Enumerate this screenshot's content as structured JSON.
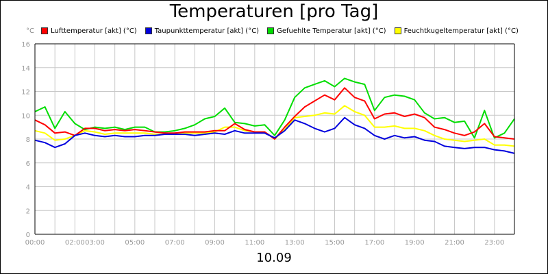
{
  "chart_data": {
    "type": "line",
    "title": "Temperaturen [pro Tag]",
    "date_label": "10.09",
    "ylabel": "°C",
    "xlabel": "",
    "ylim": [
      0,
      16
    ],
    "xlim": [
      0,
      24
    ],
    "y_ticks": [
      "0",
      "2",
      "4",
      "6",
      "8",
      "10",
      "12",
      "14",
      "16"
    ],
    "x_ticks": [
      {
        "h": 0,
        "label": "00:00"
      },
      {
        "h": 2,
        "label": "02:00"
      },
      {
        "h": 3,
        "label": "03:00"
      },
      {
        "h": 5,
        "label": "05:00"
      },
      {
        "h": 7,
        "label": "07:00"
      },
      {
        "h": 9,
        "label": "09:00"
      },
      {
        "h": 11,
        "label": "11:00"
      },
      {
        "h": 13,
        "label": "13:00"
      },
      {
        "h": 15,
        "label": "15:00"
      },
      {
        "h": 17,
        "label": "17:00"
      },
      {
        "h": 19,
        "label": "19:00"
      },
      {
        "h": 21,
        "label": "21:00"
      },
      {
        "h": 23,
        "label": "23:00"
      }
    ],
    "grid": true,
    "legend_position": "top",
    "series": [
      {
        "name": "Lufttemperatur [akt] (°C)",
        "color": "#ff0000",
        "x": [
          0,
          0.5,
          1,
          1.5,
          2,
          2.5,
          3,
          3.5,
          4,
          4.5,
          5,
          5.5,
          6,
          6.5,
          7,
          7.5,
          8,
          8.5,
          9,
          9.5,
          10,
          10.5,
          11,
          11.5,
          12,
          12.5,
          13,
          13.5,
          14,
          14.5,
          15,
          15.5,
          16,
          16.5,
          17,
          17.5,
          18,
          18.5,
          19,
          19.5,
          20,
          20.5,
          21,
          21.5,
          22,
          22.5,
          23,
          23.5,
          24
        ],
        "values": [
          9.6,
          9.2,
          8.5,
          8.6,
          8.3,
          8.9,
          8.9,
          8.7,
          8.8,
          8.7,
          8.8,
          8.7,
          8.6,
          8.5,
          8.5,
          8.6,
          8.6,
          8.6,
          8.7,
          8.7,
          9.3,
          8.8,
          8.6,
          8.6,
          8.0,
          9.0,
          9.9,
          10.7,
          11.2,
          11.7,
          11.3,
          12.3,
          11.5,
          11.2,
          9.7,
          10.1,
          10.2,
          9.9,
          10.1,
          9.8,
          9.0,
          8.8,
          8.5,
          8.3,
          8.6,
          9.3,
          8.2,
          8.1,
          8.0
        ]
      },
      {
        "name": "Taupunkttemperatur [akt] (°C)",
        "color": "#0000dd",
        "x": [
          0,
          0.5,
          1,
          1.5,
          2,
          2.5,
          3,
          3.5,
          4,
          4.5,
          5,
          5.5,
          6,
          6.5,
          7,
          7.5,
          8,
          8.5,
          9,
          9.5,
          10,
          10.5,
          11,
          11.5,
          12,
          12.5,
          13,
          13.5,
          14,
          14.5,
          15,
          15.5,
          16,
          16.5,
          17,
          17.5,
          18,
          18.5,
          19,
          19.5,
          20,
          20.5,
          21,
          21.5,
          22,
          22.5,
          23,
          23.5,
          24
        ],
        "values": [
          7.9,
          7.7,
          7.3,
          7.6,
          8.3,
          8.5,
          8.3,
          8.2,
          8.3,
          8.2,
          8.2,
          8.3,
          8.3,
          8.4,
          8.4,
          8.4,
          8.3,
          8.4,
          8.5,
          8.4,
          8.7,
          8.5,
          8.5,
          8.5,
          8.1,
          8.7,
          9.6,
          9.3,
          8.9,
          8.6,
          8.9,
          9.8,
          9.2,
          8.9,
          8.3,
          8.0,
          8.3,
          8.1,
          8.2,
          7.9,
          7.8,
          7.4,
          7.3,
          7.2,
          7.3,
          7.3,
          7.1,
          7.0,
          6.8
        ]
      },
      {
        "name": "Gefuehlte Temperatur [akt] (°C)",
        "color": "#00dd00",
        "x": [
          0,
          0.5,
          1,
          1.5,
          2,
          2.5,
          3,
          3.5,
          4,
          4.5,
          5,
          5.5,
          6,
          6.5,
          7,
          7.5,
          8,
          8.5,
          9,
          9.5,
          10,
          10.5,
          11,
          11.5,
          12,
          12.5,
          13,
          13.5,
          14,
          14.5,
          15,
          15.5,
          16,
          16.5,
          17,
          17.5,
          18,
          18.5,
          19,
          19.5,
          20,
          20.5,
          21,
          21.5,
          22,
          22.5,
          23,
          23.5,
          24
        ],
        "values": [
          10.3,
          10.7,
          8.9,
          10.3,
          9.3,
          8.8,
          9.0,
          8.9,
          9.0,
          8.8,
          9.0,
          9.0,
          8.6,
          8.6,
          8.7,
          8.9,
          9.2,
          9.7,
          9.9,
          10.6,
          9.4,
          9.3,
          9.1,
          9.2,
          8.3,
          9.6,
          11.5,
          12.3,
          12.6,
          12.9,
          12.4,
          13.1,
          12.8,
          12.6,
          10.4,
          11.5,
          11.7,
          11.6,
          11.3,
          10.2,
          9.7,
          9.8,
          9.4,
          9.5,
          8.1,
          10.4,
          8.1,
          8.5,
          9.7
        ]
      },
      {
        "name": "Feuchtkugeltemperatur [akt] (°C)",
        "color": "#ffff00",
        "x": [
          0,
          0.5,
          1,
          1.5,
          2,
          2.5,
          3,
          3.5,
          4,
          4.5,
          5,
          5.5,
          6,
          6.5,
          7,
          7.5,
          8,
          8.5,
          9,
          9.5,
          10,
          10.5,
          11,
          11.5,
          12,
          12.5,
          13,
          13.5,
          14,
          14.5,
          15,
          15.5,
          16,
          16.5,
          17,
          17.5,
          18,
          18.5,
          19,
          19.5,
          20,
          20.5,
          21,
          21.5,
          22,
          22.5,
          23,
          23.5,
          24
        ],
        "values": [
          8.7,
          8.5,
          7.9,
          8.0,
          8.3,
          8.7,
          8.6,
          8.4,
          8.5,
          8.5,
          8.5,
          8.5,
          8.4,
          8.4,
          8.4,
          8.5,
          8.5,
          8.5,
          8.6,
          9.0,
          9.0,
          8.7,
          8.6,
          8.6,
          8.0,
          8.8,
          9.8,
          9.9,
          10.0,
          10.2,
          10.1,
          10.8,
          10.3,
          10.0,
          9.0,
          9.0,
          9.1,
          8.9,
          8.9,
          8.7,
          8.3,
          8.0,
          7.9,
          7.8,
          7.9,
          8.0,
          7.5,
          7.5,
          7.4
        ]
      }
    ]
  }
}
